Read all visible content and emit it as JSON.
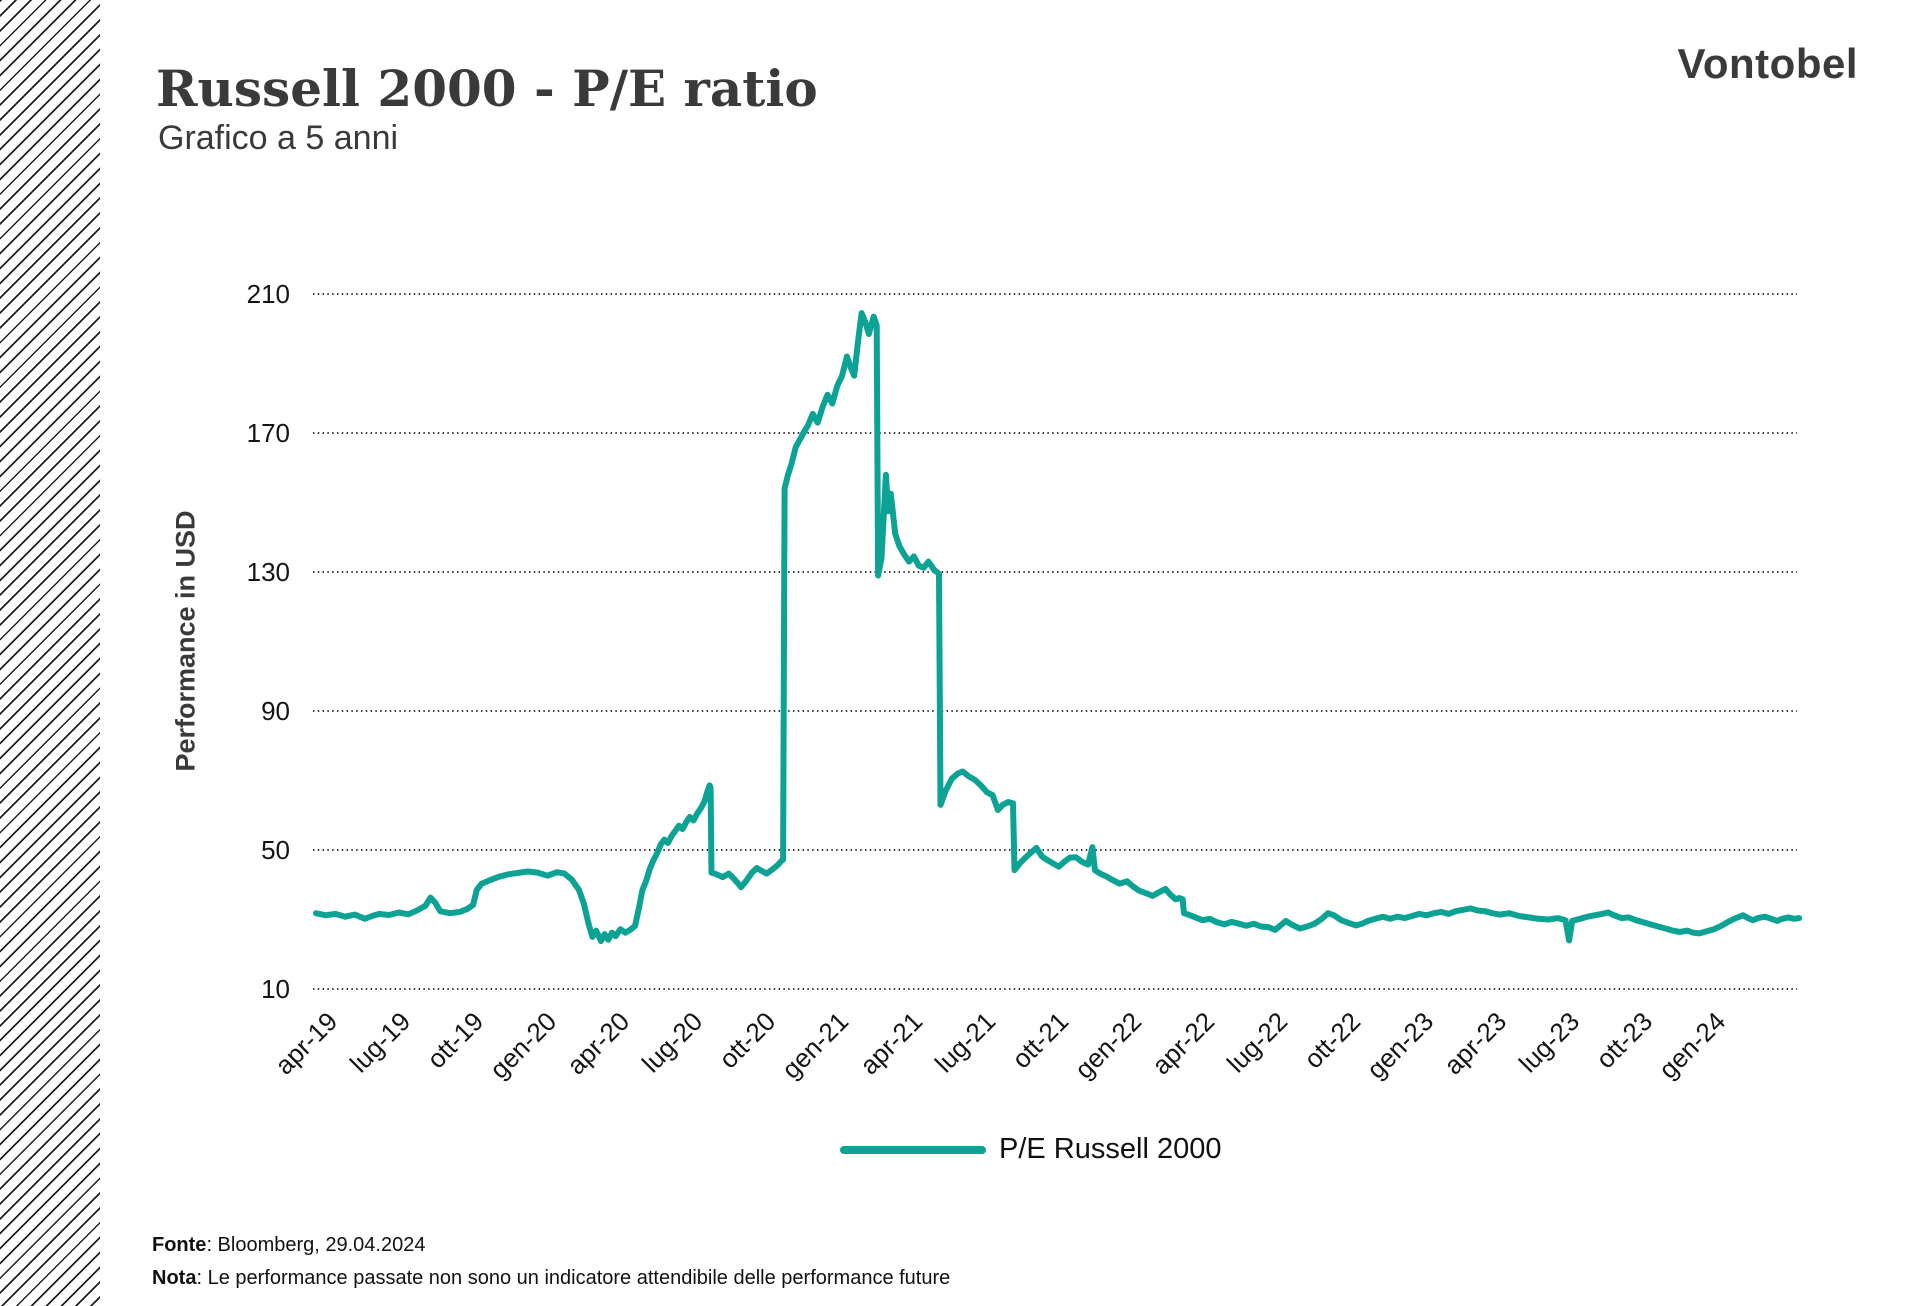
{
  "header": {
    "title": "Russell 2000 - P/E ratio",
    "subtitle": "Grafico a 5 anni",
    "logo": "Vontobel"
  },
  "footer": {
    "source_label": "Fonte",
    "source_rest": ": Bloomberg, 29.04.2024",
    "note_label": "Nota",
    "note_rest": ": Le performance passate non sono un indicatore attendibile delle performance future"
  },
  "colors": {
    "accent": "#0CA294",
    "text_dark": "#3A3A39",
    "text_black": "#141414"
  },
  "chart_data": {
    "type": "line",
    "title": "Russell 2000 - P/E ratio",
    "subtitle": "Grafico a 5 anni",
    "xlabel": "",
    "ylabel": "Performance in USD",
    "ylim": [
      10,
      210
    ],
    "yticks": [
      210,
      170,
      130,
      90,
      50,
      10
    ],
    "grid": "horizontal dotted",
    "legend_position": "bottom center",
    "categories": [
      "apr-19",
      "lug-19",
      "ott-19",
      "gen-20",
      "apr-20",
      "lug-20",
      "ott-20",
      "gen-21",
      "apr-21",
      "lug-21",
      "ott-21",
      "gen-22",
      "apr-22",
      "lug-22",
      "ott-22",
      "gen-23",
      "apr-23",
      "lug-23",
      "ott-23",
      "gen-24"
    ],
    "x_unit": "months since apr-19, ticks every 3 months, data through 29.04.2024",
    "series": [
      {
        "name": "P/E Russell 2000",
        "color": "#0CA294",
        "points": [
          [
            0,
            31.8
          ],
          [
            0.4,
            31.2
          ],
          [
            0.8,
            31.6
          ],
          [
            1.2,
            30.8
          ],
          [
            1.6,
            31.4
          ],
          [
            2,
            30.2
          ],
          [
            2.3,
            31
          ],
          [
            2.6,
            31.6
          ],
          [
            3,
            31.3
          ],
          [
            3.4,
            32
          ],
          [
            3.8,
            31.5
          ],
          [
            4.2,
            32.8
          ],
          [
            4.5,
            34
          ],
          [
            4.7,
            36.3
          ],
          [
            4.9,
            34.8
          ],
          [
            5.1,
            32.4
          ],
          [
            5.5,
            31.8
          ],
          [
            5.9,
            32.2
          ],
          [
            6.2,
            33
          ],
          [
            6.45,
            34.2
          ],
          [
            6.6,
            38.5
          ],
          [
            6.8,
            40.3
          ],
          [
            7.1,
            41.2
          ],
          [
            7.5,
            42.3
          ],
          [
            7.9,
            43
          ],
          [
            8.3,
            43.4
          ],
          [
            8.7,
            43.8
          ],
          [
            9.1,
            43.5
          ],
          [
            9.5,
            42.6
          ],
          [
            9.9,
            43.6
          ],
          [
            10.2,
            43.2
          ],
          [
            10.5,
            41.5
          ],
          [
            10.8,
            38.5
          ],
          [
            11,
            34.5
          ],
          [
            11.2,
            28.5
          ],
          [
            11.35,
            25
          ],
          [
            11.5,
            26.8
          ],
          [
            11.7,
            23.8
          ],
          [
            11.85,
            25.8
          ],
          [
            12,
            24.2
          ],
          [
            12.15,
            26.2
          ],
          [
            12.3,
            25.2
          ],
          [
            12.5,
            27.2
          ],
          [
            12.7,
            26.2
          ],
          [
            12.9,
            27
          ],
          [
            13.1,
            28.2
          ],
          [
            13.25,
            33
          ],
          [
            13.4,
            38.5
          ],
          [
            13.55,
            41
          ],
          [
            13.7,
            44.5
          ],
          [
            13.85,
            47
          ],
          [
            14,
            49
          ],
          [
            14.15,
            51.5
          ],
          [
            14.3,
            53
          ],
          [
            14.45,
            52
          ],
          [
            14.6,
            54
          ],
          [
            14.75,
            55.5
          ],
          [
            14.9,
            57
          ],
          [
            15.05,
            56
          ],
          [
            15.2,
            58
          ],
          [
            15.35,
            59.5
          ],
          [
            15.5,
            58.5
          ],
          [
            15.65,
            60.5
          ],
          [
            15.8,
            62
          ],
          [
            15.95,
            64
          ],
          [
            16.08,
            67
          ],
          [
            16.16,
            68.6
          ],
          [
            16.2,
            67.8
          ],
          [
            16.24,
            43.5
          ],
          [
            16.45,
            43
          ],
          [
            16.7,
            42.2
          ],
          [
            16.95,
            43.2
          ],
          [
            17.15,
            41.8
          ],
          [
            17.35,
            40.2
          ],
          [
            17.45,
            39.3
          ],
          [
            17.65,
            41
          ],
          [
            17.9,
            43.5
          ],
          [
            18.1,
            44.8
          ],
          [
            18.3,
            44
          ],
          [
            18.5,
            43.2
          ],
          [
            18.7,
            44.2
          ],
          [
            18.95,
            45.6
          ],
          [
            19.1,
            46.8
          ],
          [
            19.18,
            47.2
          ],
          [
            19.24,
            154
          ],
          [
            19.38,
            158
          ],
          [
            19.52,
            161
          ],
          [
            19.7,
            166
          ],
          [
            19.9,
            168.5
          ],
          [
            20.05,
            170.5
          ],
          [
            20.2,
            172.2
          ],
          [
            20.4,
            175.5
          ],
          [
            20.6,
            173
          ],
          [
            20.8,
            177.5
          ],
          [
            21,
            181
          ],
          [
            21.2,
            178.5
          ],
          [
            21.4,
            183.5
          ],
          [
            21.6,
            186.5
          ],
          [
            21.8,
            192
          ],
          [
            21.95,
            189
          ],
          [
            22.1,
            186.5
          ],
          [
            22.25,
            196
          ],
          [
            22.4,
            204.5
          ],
          [
            22.55,
            202
          ],
          [
            22.7,
            198.5
          ],
          [
            22.9,
            203.5
          ],
          [
            23.02,
            201
          ],
          [
            23.08,
            129
          ],
          [
            23.22,
            134
          ],
          [
            23.4,
            158
          ],
          [
            23.5,
            147.5
          ],
          [
            23.6,
            152.5
          ],
          [
            23.78,
            141
          ],
          [
            23.95,
            137.5
          ],
          [
            24.15,
            135
          ],
          [
            24.35,
            133
          ],
          [
            24.55,
            134.5
          ],
          [
            24.75,
            131.8
          ],
          [
            24.95,
            131.2
          ],
          [
            25.15,
            133
          ],
          [
            25.38,
            130.6
          ],
          [
            25.58,
            129.5
          ],
          [
            25.64,
            63
          ],
          [
            25.85,
            67
          ],
          [
            26.1,
            70.5
          ],
          [
            26.35,
            72
          ],
          [
            26.55,
            72.6
          ],
          [
            26.8,
            71.2
          ],
          [
            27.05,
            70.2
          ],
          [
            27.3,
            68.6
          ],
          [
            27.55,
            66.6
          ],
          [
            27.78,
            65.8
          ],
          [
            28,
            61.5
          ],
          [
            28.2,
            63
          ],
          [
            28.42,
            63.8
          ],
          [
            28.62,
            63.4
          ],
          [
            28.68,
            44.2
          ],
          [
            28.9,
            46.2
          ],
          [
            29.1,
            47.6
          ],
          [
            29.35,
            49.2
          ],
          [
            29.58,
            50.6
          ],
          [
            29.8,
            48.2
          ],
          [
            30,
            47.2
          ],
          [
            30.25,
            46.2
          ],
          [
            30.5,
            45.2
          ],
          [
            30.72,
            46.6
          ],
          [
            30.95,
            47.8
          ],
          [
            31.2,
            47.9
          ],
          [
            31.45,
            46.6
          ],
          [
            31.7,
            45.8
          ],
          [
            31.88,
            50.8
          ],
          [
            31.98,
            44.2
          ],
          [
            32.2,
            43.2
          ],
          [
            32.5,
            42.2
          ],
          [
            32.75,
            41.2
          ],
          [
            33,
            40.3
          ],
          [
            33.3,
            41
          ],
          [
            33.55,
            39.5
          ],
          [
            33.8,
            38.3
          ],
          [
            34.1,
            37.5
          ],
          [
            34.35,
            36.8
          ],
          [
            34.6,
            37.8
          ],
          [
            34.88,
            38.8
          ],
          [
            35.1,
            37
          ],
          [
            35.3,
            35.8
          ],
          [
            35.45,
            36.2
          ],
          [
            35.58,
            35.8
          ],
          [
            35.64,
            31.8
          ],
          [
            35.9,
            31.2
          ],
          [
            36.15,
            30.5
          ],
          [
            36.4,
            29.8
          ],
          [
            36.7,
            30.2
          ],
          [
            37,
            29.2
          ],
          [
            37.3,
            28.6
          ],
          [
            37.6,
            29.3
          ],
          [
            37.9,
            28.8
          ],
          [
            38.2,
            28.2
          ],
          [
            38.5,
            28.8
          ],
          [
            38.8,
            28
          ],
          [
            39.1,
            27.8
          ],
          [
            39.38,
            27
          ],
          [
            39.6,
            28.3
          ],
          [
            39.82,
            29.6
          ],
          [
            40.05,
            28.6
          ],
          [
            40.4,
            27.4
          ],
          [
            40.7,
            28
          ],
          [
            41,
            28.8
          ],
          [
            41.3,
            30.2
          ],
          [
            41.55,
            31.8
          ],
          [
            41.8,
            31.2
          ],
          [
            42.1,
            29.8
          ],
          [
            42.4,
            29
          ],
          [
            42.7,
            28.3
          ],
          [
            42.95,
            28.8
          ],
          [
            43.2,
            29.6
          ],
          [
            43.5,
            30.2
          ],
          [
            43.8,
            30.8
          ],
          [
            44.1,
            30.2
          ],
          [
            44.4,
            30.8
          ],
          [
            44.7,
            30.4
          ],
          [
            45,
            31
          ],
          [
            45.3,
            31.6
          ],
          [
            45.6,
            31.2
          ],
          [
            45.9,
            31.8
          ],
          [
            46.2,
            32.2
          ],
          [
            46.5,
            31.6
          ],
          [
            46.8,
            32.4
          ],
          [
            47.1,
            32.8
          ],
          [
            47.4,
            33.2
          ],
          [
            47.7,
            32.6
          ],
          [
            48,
            32.4
          ],
          [
            48.3,
            31.8
          ],
          [
            48.6,
            31.4
          ],
          [
            49,
            31.8
          ],
          [
            49.4,
            31
          ],
          [
            49.8,
            30.6
          ],
          [
            50.2,
            30.2
          ],
          [
            50.6,
            30
          ],
          [
            51,
            30.4
          ],
          [
            51.3,
            29.8
          ],
          [
            51.45,
            24
          ],
          [
            51.58,
            29.6
          ],
          [
            51.9,
            30.2
          ],
          [
            52.2,
            30.8
          ],
          [
            52.5,
            31.2
          ],
          [
            52.8,
            31.6
          ],
          [
            53.05,
            32
          ],
          [
            53.3,
            31.2
          ],
          [
            53.6,
            30.4
          ],
          [
            53.9,
            30.6
          ],
          [
            54.2,
            29.8
          ],
          [
            54.5,
            29.2
          ],
          [
            54.8,
            28.6
          ],
          [
            55.1,
            28
          ],
          [
            55.4,
            27.4
          ],
          [
            55.7,
            26.8
          ],
          [
            56,
            26.4
          ],
          [
            56.3,
            26.8
          ],
          [
            56.55,
            26.2
          ],
          [
            56.8,
            26
          ],
          [
            57.1,
            26.6
          ],
          [
            57.4,
            27.2
          ],
          [
            57.7,
            28.2
          ],
          [
            58,
            29.4
          ],
          [
            58.3,
            30.4
          ],
          [
            58.6,
            31.2
          ],
          [
            58.8,
            30.4
          ],
          [
            59,
            29.8
          ],
          [
            59.2,
            30.4
          ],
          [
            59.5,
            30.8
          ],
          [
            59.75,
            30.2
          ],
          [
            60,
            29.6
          ],
          [
            60.2,
            30.2
          ],
          [
            60.45,
            30.6
          ],
          [
            60.7,
            30.2
          ],
          [
            60.9,
            30.4
          ]
        ]
      }
    ]
  }
}
